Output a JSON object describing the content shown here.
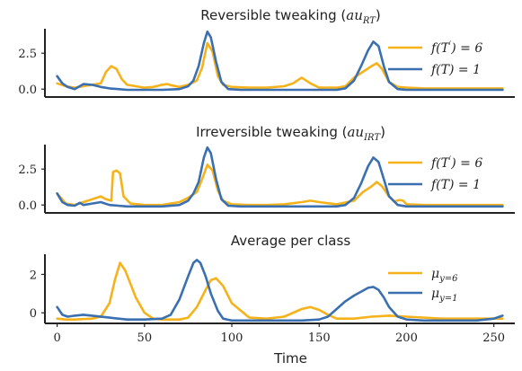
{
  "colors": {
    "orange": "#F5B21A",
    "blue": "#3A6FB0"
  },
  "chart_data": [
    {
      "type": "line",
      "title": "Reversible tweaking ($au_{RT}$)",
      "title_parts": [
        "Reversible tweaking (",
        "au",
        "RT",
        ")"
      ],
      "xlim": [
        -7,
        262
      ],
      "ylim": [
        -0.55,
        4.2
      ],
      "yticks": [
        0.0,
        2.5
      ],
      "ytick_labels": [
        "0.0",
        "2.5"
      ],
      "legend_position": "right",
      "series": [
        {
          "name": "f(T') = 6",
          "label_parts": [
            "f(T",
            "′",
            ") = 6"
          ],
          "color": "#F5B21A",
          "x": [
            0,
            5,
            10,
            15,
            20,
            25,
            28,
            31,
            34,
            37,
            40,
            45,
            50,
            55,
            60,
            63,
            66,
            70,
            75,
            80,
            83,
            86,
            89,
            92,
            95,
            100,
            110,
            120,
            130,
            135,
            140,
            145,
            150,
            160,
            165,
            170,
            175,
            180,
            183,
            186,
            190,
            195,
            200,
            210,
            220,
            230,
            240,
            250,
            255
          ],
          "y": [
            0.4,
            0.2,
            0.1,
            0.2,
            0.3,
            0.4,
            1.2,
            1.6,
            1.4,
            0.7,
            0.3,
            0.2,
            0.1,
            0.15,
            0.3,
            0.35,
            0.25,
            0.15,
            0.3,
            0.6,
            1.5,
            3.2,
            2.6,
            0.9,
            0.3,
            0.15,
            0.1,
            0.1,
            0.2,
            0.4,
            0.8,
            0.4,
            0.1,
            0.1,
            0.2,
            0.8,
            1.2,
            1.6,
            1.8,
            1.4,
            0.5,
            0.15,
            0.1,
            0.05,
            0.05,
            0.05,
            0.05,
            0.05,
            0.05
          ]
        },
        {
          "name": "f(T) = 1",
          "label_parts": [
            "f(T) = 1"
          ],
          "color": "#3A6FB0",
          "x": [
            0,
            3,
            6,
            10,
            15,
            20,
            25,
            30,
            35,
            40,
            50,
            60,
            70,
            75,
            78,
            81,
            84,
            86,
            88,
            91,
            94,
            98,
            105,
            120,
            140,
            150,
            160,
            165,
            170,
            174,
            178,
            181,
            184,
            187,
            190,
            195,
            200,
            220,
            240,
            255
          ],
          "y": [
            0.9,
            0.4,
            0.15,
            0.0,
            0.35,
            0.3,
            0.15,
            0.05,
            0.0,
            -0.05,
            -0.05,
            -0.05,
            0.0,
            0.2,
            0.6,
            1.6,
            3.2,
            4.0,
            3.6,
            1.9,
            0.5,
            0.0,
            -0.05,
            -0.05,
            -0.05,
            -0.05,
            -0.05,
            0.05,
            0.6,
            1.6,
            2.7,
            3.3,
            3.0,
            1.6,
            0.5,
            0.0,
            -0.05,
            -0.05,
            -0.05,
            -0.05
          ]
        }
      ]
    },
    {
      "type": "line",
      "title": "Irreversible tweaking ($au_{IRT}$)",
      "title_parts": [
        "Irreversible tweaking (",
        "au",
        "IRT",
        ")"
      ],
      "xlim": [
        -7,
        262
      ],
      "ylim": [
        -0.55,
        4.2
      ],
      "yticks": [
        0.0,
        2.5
      ],
      "ytick_labels": [
        "0.0",
        "2.5"
      ],
      "legend_position": "right",
      "series": [
        {
          "name": "f(T') = 6",
          "label_parts": [
            "f(T",
            "′",
            ") = 6"
          ],
          "color": "#F5B21A",
          "x": [
            0,
            5,
            10,
            15,
            20,
            25,
            28,
            31,
            32,
            34,
            36,
            38,
            42,
            50,
            60,
            70,
            75,
            80,
            83,
            86,
            89,
            92,
            95,
            100,
            110,
            120,
            130,
            140,
            145,
            150,
            160,
            170,
            175,
            180,
            183,
            186,
            190,
            193,
            196,
            198,
            200,
            210,
            220,
            240,
            255
          ],
          "y": [
            0.8,
            0.1,
            0.0,
            0.2,
            0.4,
            0.6,
            0.4,
            0.3,
            2.3,
            2.4,
            2.2,
            0.6,
            0.1,
            0.0,
            0.0,
            0.2,
            0.5,
            0.9,
            1.8,
            2.8,
            2.4,
            1.0,
            0.3,
            0.05,
            0.0,
            0.0,
            0.05,
            0.2,
            0.3,
            0.2,
            0.05,
            0.3,
            0.9,
            1.3,
            1.6,
            1.3,
            0.6,
            0.25,
            0.35,
            0.3,
            0.05,
            0.0,
            0.0,
            0.0,
            0.0
          ]
        },
        {
          "name": "f(T) = 1",
          "label_parts": [
            "f(T) = 1"
          ],
          "color": "#3A6FB0",
          "x": [
            0,
            3,
            6,
            10,
            13,
            15,
            20,
            25,
            30,
            35,
            40,
            50,
            60,
            70,
            75,
            78,
            81,
            84,
            86,
            88,
            91,
            94,
            98,
            105,
            120,
            140,
            160,
            165,
            170,
            174,
            178,
            181,
            184,
            187,
            190,
            195,
            200,
            220,
            240,
            255
          ],
          "y": [
            0.8,
            0.2,
            0.0,
            -0.05,
            0.15,
            0.0,
            0.1,
            0.2,
            0.0,
            -0.05,
            -0.1,
            -0.1,
            -0.1,
            0.0,
            0.3,
            0.8,
            1.6,
            3.3,
            4.0,
            3.6,
            1.8,
            0.4,
            -0.05,
            -0.1,
            -0.1,
            -0.1,
            -0.1,
            0.0,
            0.5,
            1.5,
            2.7,
            3.3,
            3.0,
            1.8,
            0.6,
            0.0,
            -0.1,
            -0.1,
            -0.1,
            -0.1
          ]
        }
      ]
    },
    {
      "type": "line",
      "title": "Average per class",
      "title_parts": [
        "Average per class"
      ],
      "xlim": [
        -7,
        262
      ],
      "ylim": [
        -0.55,
        3.05
      ],
      "yticks": [
        0,
        2
      ],
      "ytick_labels": [
        "0",
        "2"
      ],
      "xticks": [
        0,
        50,
        100,
        150,
        200,
        250
      ],
      "xtick_labels": [
        "0",
        "50",
        "100",
        "150",
        "200",
        "250"
      ],
      "xlabel": "Time",
      "legend_position": "right",
      "series": [
        {
          "name": "μ_{y=6}",
          "label_parts": [
            "μ",
            "y=6"
          ],
          "color": "#F5B21A",
          "x": [
            0,
            5,
            10,
            20,
            25,
            30,
            33,
            36,
            39,
            42,
            45,
            50,
            55,
            60,
            70,
            75,
            80,
            85,
            88,
            91,
            95,
            100,
            110,
            120,
            130,
            140,
            145,
            150,
            155,
            160,
            170,
            180,
            190,
            200,
            220,
            240,
            255
          ],
          "y": [
            -0.3,
            -0.35,
            -0.35,
            -0.3,
            -0.2,
            0.5,
            1.7,
            2.6,
            2.2,
            1.5,
            0.8,
            0.0,
            -0.3,
            -0.35,
            -0.35,
            -0.25,
            0.3,
            1.2,
            1.7,
            1.8,
            1.4,
            0.5,
            -0.25,
            -0.3,
            -0.2,
            0.2,
            0.3,
            0.15,
            -0.1,
            -0.3,
            -0.3,
            -0.2,
            -0.15,
            -0.2,
            -0.3,
            -0.3,
            -0.3
          ]
        },
        {
          "name": "μ_{y=1}",
          "label_parts": [
            "μ",
            "y=1"
          ],
          "color": "#3A6FB0",
          "x": [
            0,
            3,
            6,
            10,
            15,
            20,
            30,
            40,
            50,
            60,
            65,
            70,
            75,
            78,
            80,
            82,
            85,
            88,
            92,
            95,
            100,
            110,
            120,
            140,
            150,
            155,
            160,
            165,
            170,
            175,
            178,
            181,
            184,
            187,
            190,
            195,
            200,
            210,
            220,
            240,
            250,
            255
          ],
          "y": [
            0.3,
            -0.1,
            -0.2,
            -0.15,
            -0.1,
            -0.15,
            -0.25,
            -0.35,
            -0.35,
            -0.3,
            -0.1,
            0.7,
            1.9,
            2.6,
            2.75,
            2.6,
            1.9,
            1.0,
            0.1,
            -0.3,
            -0.4,
            -0.4,
            -0.4,
            -0.4,
            -0.35,
            -0.2,
            0.2,
            0.6,
            0.9,
            1.15,
            1.3,
            1.35,
            1.2,
            0.8,
            0.3,
            -0.2,
            -0.35,
            -0.4,
            -0.4,
            -0.4,
            -0.3,
            -0.15
          ]
        }
      ]
    }
  ]
}
